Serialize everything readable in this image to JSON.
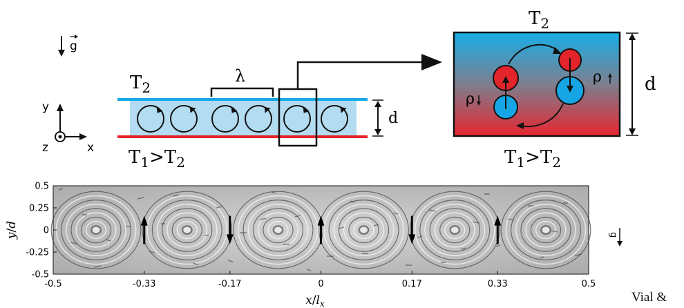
{
  "schematic": {
    "gravity_label": "g",
    "axis_y": "y",
    "axis_x": "x",
    "axis_z": "z",
    "top_plate": "T",
    "top_plate_sub": "2",
    "bottom_left": "T",
    "bottom_sub1": "1",
    "bottom_gt": ">T",
    "bottom_sub2": "2",
    "wavelength": "λ",
    "gap": "d",
    "cold_color": "#16a9e6",
    "hot_color": "#e3242b",
    "fluid_color": "#b3dcf2"
  },
  "zoom": {
    "top_label": "T",
    "top_sub": "2",
    "bottom_label": "T",
    "bottom_sub1": "1",
    "bottom_gt": ">T",
    "bottom_sub2": "2",
    "height_label": "d",
    "rho_symbol": "ρ"
  },
  "plot": {
    "ylabel_var": "y",
    "ylabel_den": "d",
    "xlabel_var": "x",
    "xlabel_den": "l",
    "xlabel_sub": "x",
    "xticks": [
      "-0.5",
      "-0.33",
      "-0.17",
      "0",
      "0.17",
      "0.33",
      "0.5"
    ],
    "xtick_values": [
      -0.5,
      -0.33,
      -0.17,
      0,
      0.17,
      0.33,
      0.5
    ],
    "yticks": [
      "0.5",
      "0.25",
      "0",
      "-0.25",
      "-0.5"
    ],
    "ytick_values": [
      0.5,
      0.25,
      0,
      -0.25,
      -0.5
    ],
    "xlim": [
      -0.5,
      0.5
    ],
    "ylim": [
      -0.5,
      0.5
    ],
    "flow_arrows": [
      {
        "x": -0.33,
        "direction": "up"
      },
      {
        "x": -0.17,
        "direction": "down"
      },
      {
        "x": 0,
        "direction": "up"
      },
      {
        "x": 0.17,
        "direction": "down"
      },
      {
        "x": 0.33,
        "direction": "up"
      }
    ],
    "gravity_label": "g"
  },
  "credit": "Vial &"
}
